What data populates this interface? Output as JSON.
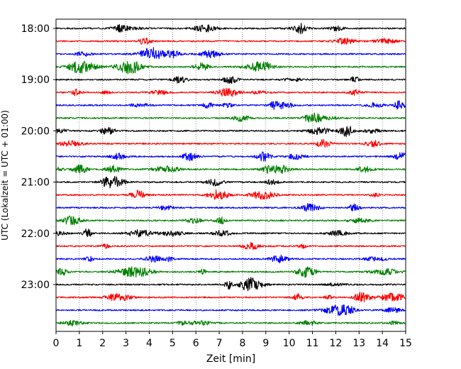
{
  "chart_data": {
    "type": "line",
    "title": "",
    "xlabel": "Zeit  [min]",
    "ylabel": "UTC (Lokalzeit = UTC + 01:00)",
    "xlim": [
      0,
      15
    ],
    "x_ticks": [
      0,
      1,
      2,
      3,
      4,
      5,
      6,
      7,
      8,
      9,
      10,
      11,
      12,
      13,
      14,
      15
    ],
    "x_tick_labels": [
      "0",
      "1",
      "2",
      "3",
      "4",
      "5",
      "6",
      "7",
      "8",
      "9",
      "10",
      "11",
      "12",
      "13",
      "14",
      "15"
    ],
    "y_tick_labels": [
      "18:00",
      "19:00",
      "20:00",
      "21:00",
      "22:00",
      "23:00"
    ],
    "grid": "vertical dotted",
    "legend": "none",
    "trace_colors": [
      "#000000",
      "#ff0000",
      "#0000ff",
      "#008000"
    ],
    "series": [
      {
        "start": "18:00",
        "color": "#000000"
      },
      {
        "start": "18:15",
        "color": "#ff0000"
      },
      {
        "start": "18:30",
        "color": "#0000ff"
      },
      {
        "start": "18:45",
        "color": "#008000"
      },
      {
        "start": "19:00",
        "color": "#000000"
      },
      {
        "start": "19:15",
        "color": "#ff0000"
      },
      {
        "start": "19:30",
        "color": "#0000ff"
      },
      {
        "start": "19:45",
        "color": "#008000"
      },
      {
        "start": "20:00",
        "color": "#000000"
      },
      {
        "start": "20:15",
        "color": "#ff0000"
      },
      {
        "start": "20:30",
        "color": "#0000ff"
      },
      {
        "start": "20:45",
        "color": "#008000"
      },
      {
        "start": "21:00",
        "color": "#000000"
      },
      {
        "start": "21:15",
        "color": "#ff0000"
      },
      {
        "start": "21:30",
        "color": "#0000ff"
      },
      {
        "start": "21:45",
        "color": "#008000"
      },
      {
        "start": "22:00",
        "color": "#000000"
      },
      {
        "start": "22:15",
        "color": "#ff0000"
      },
      {
        "start": "22:30",
        "color": "#0000ff"
      },
      {
        "start": "22:45",
        "color": "#008000"
      },
      {
        "start": "23:00",
        "color": "#000000"
      },
      {
        "start": "23:15",
        "color": "#ff0000"
      },
      {
        "start": "23:30",
        "color": "#0000ff"
      },
      {
        "start": "23:45",
        "color": "#008000"
      }
    ]
  }
}
